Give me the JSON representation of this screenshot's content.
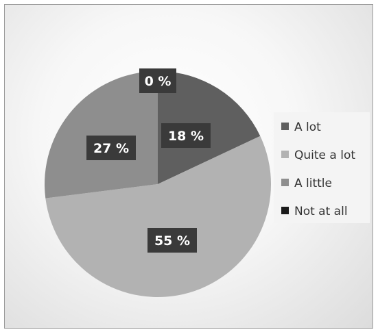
{
  "chart_data": {
    "type": "pie",
    "categories": [
      "A lot",
      "Quite a lot",
      "A little",
      "Not at all"
    ],
    "values": [
      18,
      55,
      27,
      0
    ],
    "data_labels": [
      "18 %",
      "55 %",
      "27 %",
      "0 %"
    ],
    "colors": [
      "#5f5f5f",
      "#b2b2b2",
      "#8e8e8e",
      "#1a1a1a"
    ],
    "label_bg": "#3a3a3a",
    "legend_position": "right",
    "title": ""
  }
}
